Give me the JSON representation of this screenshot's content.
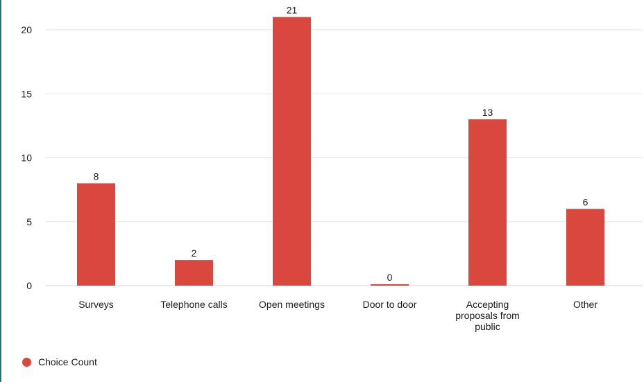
{
  "chart_data": {
    "type": "bar",
    "categories": [
      [
        "Surveys"
      ],
      [
        "Telephone calls"
      ],
      [
        "Open meetings"
      ],
      [
        "Door to door"
      ],
      [
        "Accepting",
        "proposals from",
        "public"
      ],
      [
        "Other"
      ]
    ],
    "series": [
      {
        "name": "Choice Count",
        "values": [
          8,
          2,
          21,
          0,
          13,
          6
        ]
      }
    ],
    "data_labels": [
      "8",
      "2",
      "21",
      "0",
      "13",
      "6"
    ],
    "y_ticks": [
      "0",
      "5",
      "10",
      "15",
      "20"
    ],
    "y_tick_values": [
      0,
      5,
      10,
      15,
      20
    ],
    "ylim": [
      0,
      22
    ],
    "grid": true,
    "legend_placement": "bottom-left",
    "colors": {
      "bar": "#d9473f",
      "grid": "#e6e6e6",
      "text": "#1a1a1a",
      "frame": "#2f6f73"
    }
  },
  "legend": {
    "label": "Choice Count"
  }
}
